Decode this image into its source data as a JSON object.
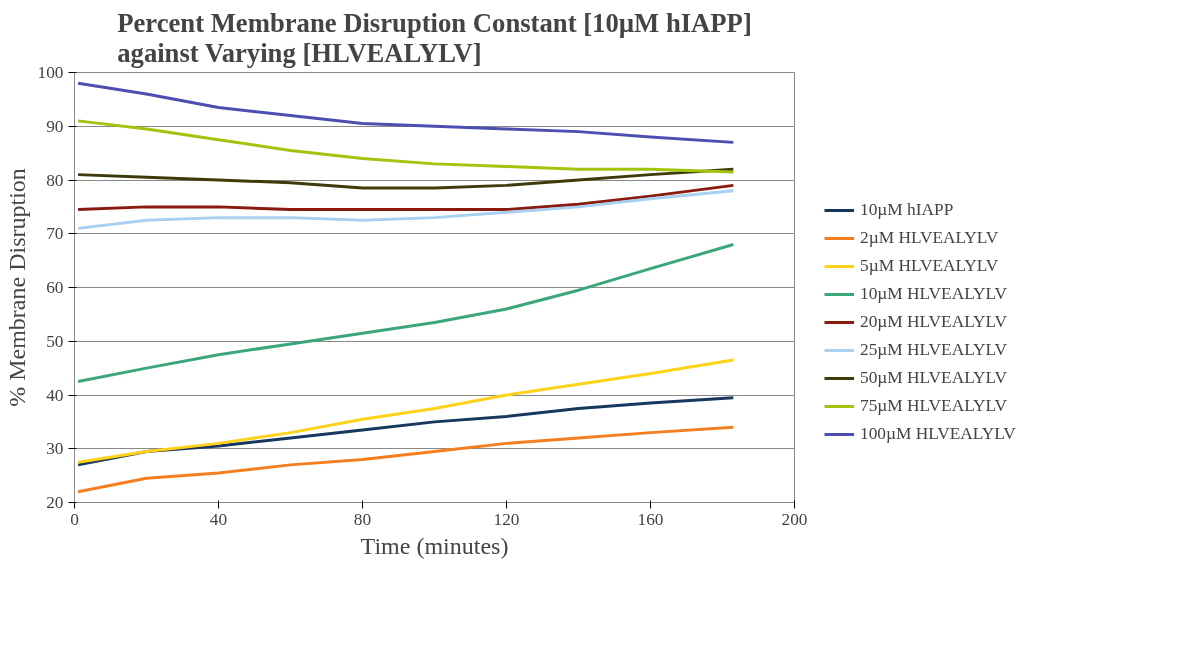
{
  "chart_data": {
    "type": "line",
    "title": "Percent Membrane Disruption Constant [10µM hIAPP]\nagainst Varying [HLVEALYLV]",
    "xlabel": "Time (minutes)",
    "ylabel": "% Membrane Disruption",
    "x": [
      1,
      20,
      40,
      60,
      80,
      100,
      120,
      140,
      160,
      183
    ],
    "series": [
      {
        "name": "10µM hIAPP",
        "color": "#17375e",
        "values": [
          27,
          29.5,
          30.5,
          32,
          33.5,
          35,
          36,
          37.5,
          38.5,
          39.5
        ]
      },
      {
        "name": "2µM HLVEALYLV",
        "color": "#f57f20",
        "values": [
          22,
          24.5,
          25.5,
          27,
          28,
          29.5,
          31,
          32,
          33,
          34
        ]
      },
      {
        "name": "5µM HLVEALYLV",
        "color": "#ffd21a",
        "values": [
          27.5,
          29.5,
          31,
          33,
          35.5,
          37.5,
          40,
          42,
          44,
          46.5
        ]
      },
      {
        "name": "10µM HLVEALYLV",
        "color": "#3aa67a",
        "values": [
          42.5,
          45,
          47.5,
          49.5,
          51.5,
          53.5,
          56,
          59.5,
          63.5,
          68
        ]
      },
      {
        "name": "20µM HLVEALYLV",
        "color": "#8b1a0e",
        "values": [
          74.5,
          75,
          75,
          74.5,
          74.5,
          74.5,
          74.5,
          75.5,
          77,
          79
        ]
      },
      {
        "name": "25µM HLVEALYLV",
        "color": "#a8d0f0",
        "values": [
          71,
          72.5,
          73,
          73,
          72.5,
          73,
          74,
          75,
          76.5,
          78
        ]
      },
      {
        "name": "50µM HLVEALYLV",
        "color": "#3e3a0a",
        "values": [
          81,
          80.5,
          80,
          79.5,
          78.5,
          78.5,
          79,
          80,
          81,
          82
        ]
      },
      {
        "name": "75µM HLVEALYLV",
        "color": "#a2c40c",
        "values": [
          91,
          89.5,
          87.5,
          85.5,
          84,
          83,
          82.5,
          82,
          82,
          81.5
        ]
      },
      {
        "name": "100µM HLVEALYLV",
        "color": "#4b4fb0",
        "values": [
          98,
          96,
          93.5,
          92,
          90.5,
          90,
          89.5,
          89,
          88,
          87
        ]
      }
    ],
    "xlim": [
      0,
      200
    ],
    "ylim": [
      20,
      100
    ],
    "xticks": [
      0,
      40,
      80,
      120,
      160,
      200
    ],
    "yticks": [
      20,
      30,
      40,
      50,
      60,
      70,
      80,
      90,
      100
    ],
    "grid": "y",
    "legend": "right",
    "marker": "none",
    "line_style": "solid"
  }
}
